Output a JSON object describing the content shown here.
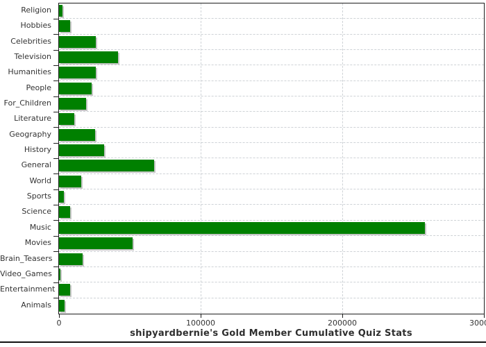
{
  "chart_data": {
    "type": "bar",
    "orientation": "horizontal",
    "title": "shipyardbernie's Gold Member Cumulative Quiz Stats",
    "categories": [
      "Religion",
      "Hobbies",
      "Celebrities",
      "Television",
      "Humanities",
      "People",
      "For_Children",
      "Literature",
      "Geography",
      "History",
      "General",
      "World",
      "Sports",
      "Science",
      "Music",
      "Movies",
      "Brain_Teasers",
      "Video_Games",
      "Entertainment",
      "Animals"
    ],
    "values": [
      2300,
      7700,
      26200,
      41800,
      26100,
      22900,
      19000,
      10700,
      25700,
      31800,
      67000,
      15900,
      3400,
      7700,
      258300,
      52100,
      16900,
      1100,
      7700,
      3800
    ],
    "xlabel": "",
    "ylabel": "",
    "xlim": [
      0,
      300000
    ],
    "x_ticks": [
      0,
      100000,
      200000,
      300000
    ],
    "x_tick_labels": [
      "0",
      "100000",
      "200000",
      "300000"
    ],
    "grid": "dashed",
    "legend": "none",
    "bar_color": "#008000",
    "bar_shadow_color": "#c6c6c6",
    "axis_color": "#1c1c1c",
    "gridline_color": "#ced2d6",
    "label_color": "#333333"
  }
}
